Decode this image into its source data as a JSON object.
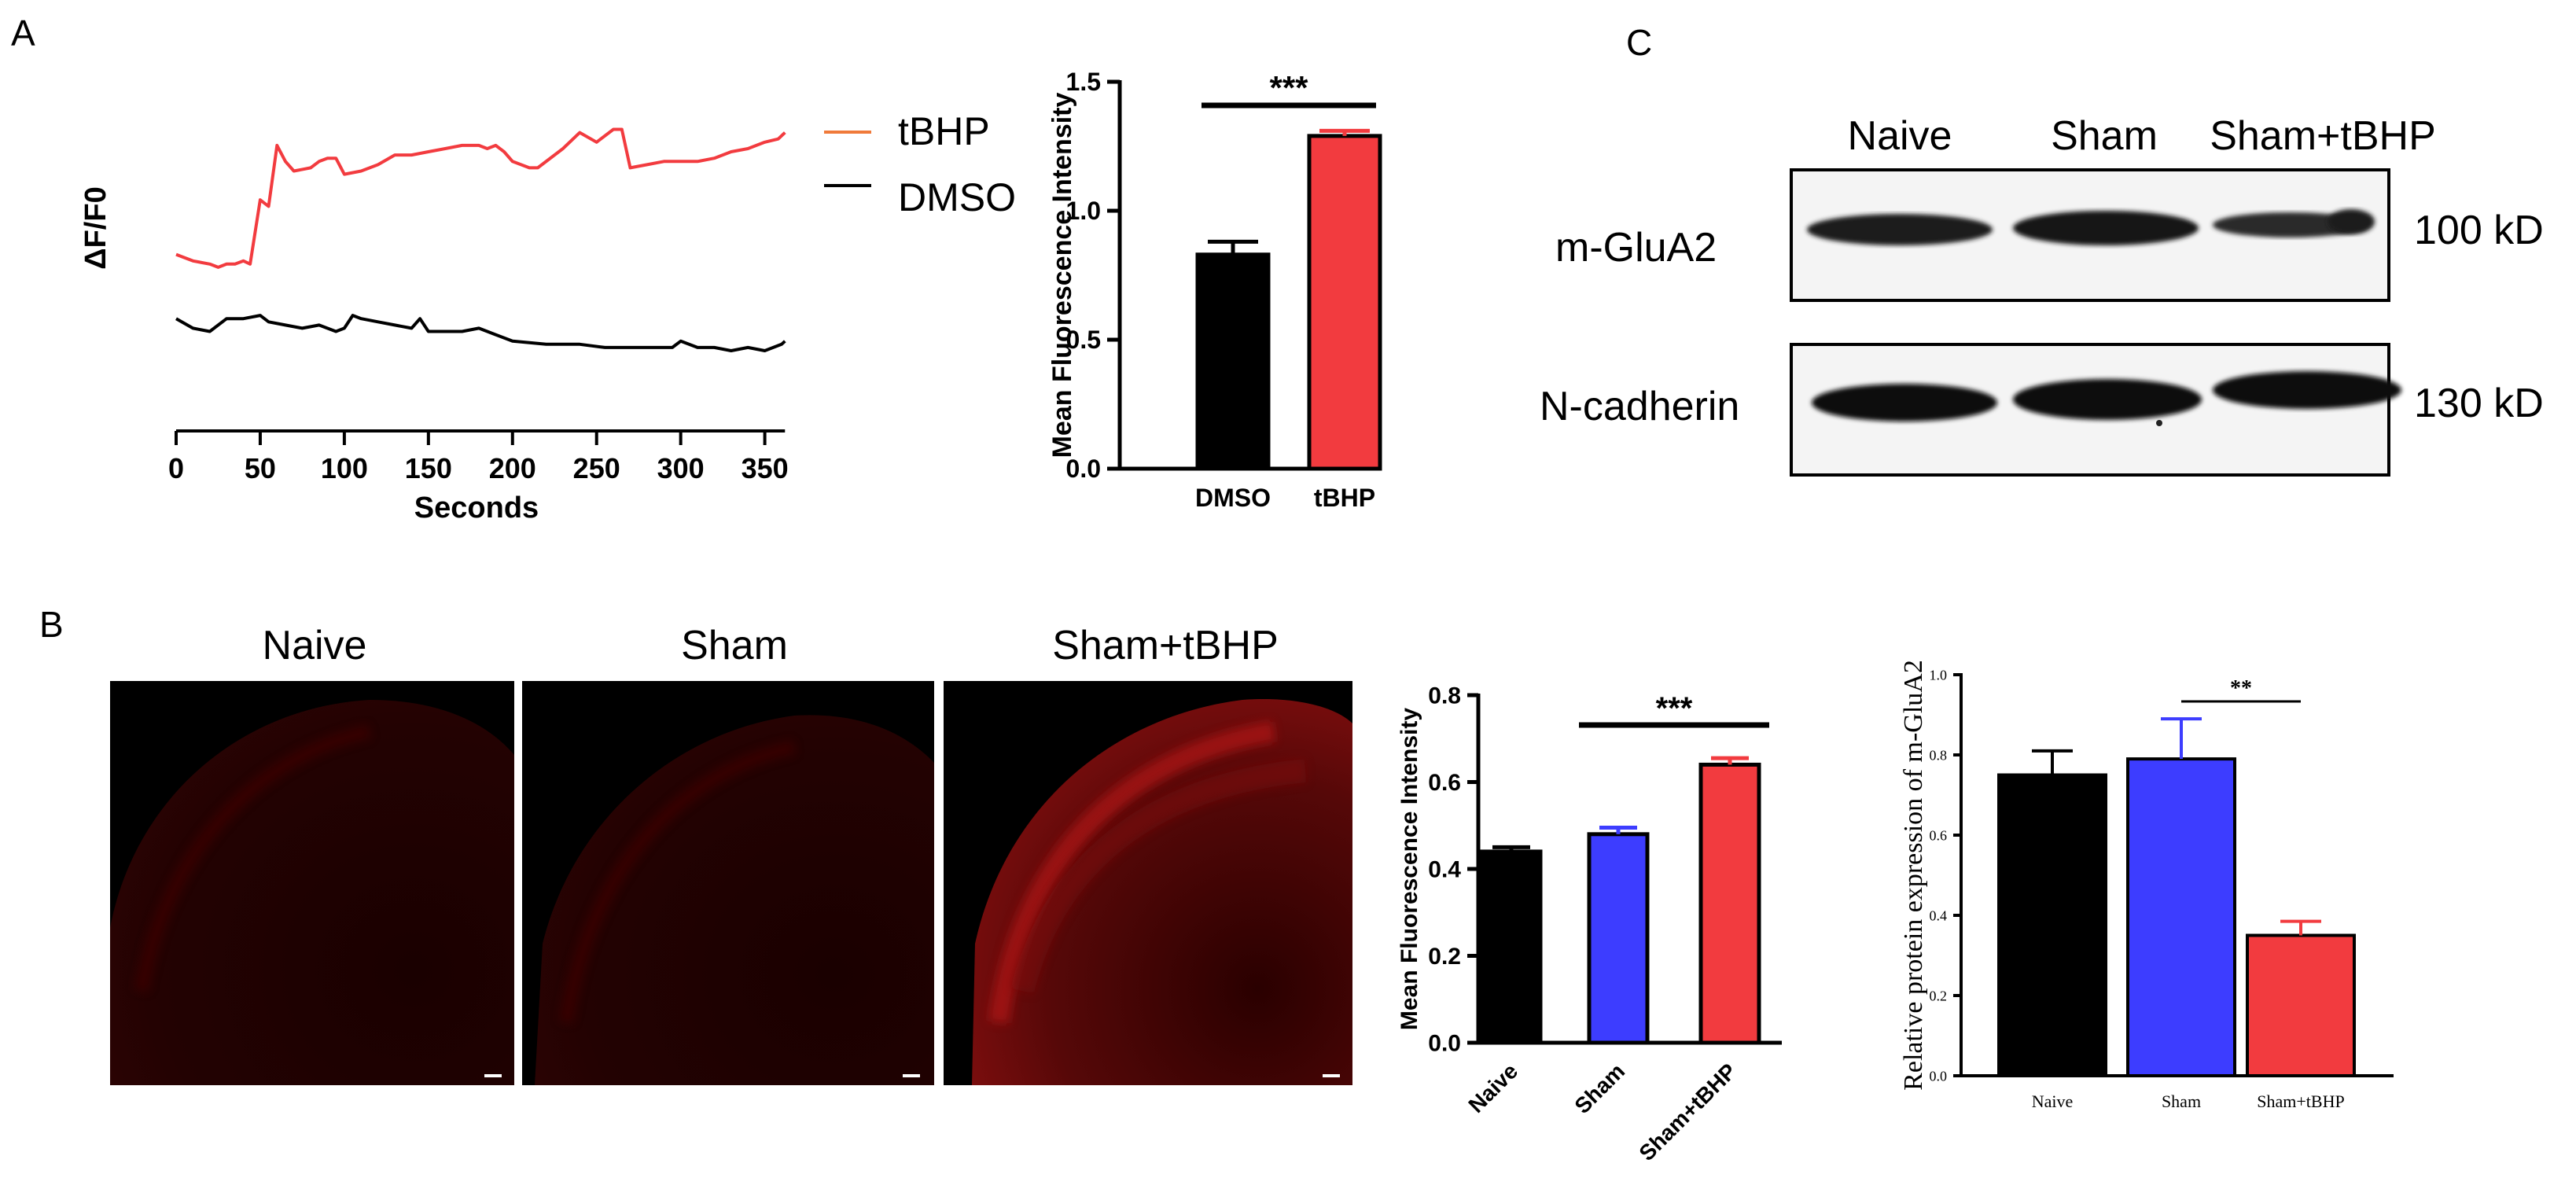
{
  "panels": {
    "a": "A",
    "b": "B",
    "c": "C"
  },
  "colors": {
    "tbhp": "#f23b3f",
    "tbhp_legend": "#f07a3a",
    "dmso": "#000000",
    "naive": "#000000",
    "sham": "#3d3dff",
    "sham_tbhp": "#f23b3f"
  },
  "micrographs": {
    "labels": [
      "Naive",
      "Sham",
      "Sham+tBHP"
    ],
    "intensity": [
      "low",
      "low",
      "high"
    ]
  },
  "western_blot": {
    "lanes": [
      "Naive",
      "Sham",
      "Sham+tBHP"
    ],
    "rows": [
      {
        "protein": "m-GluA2",
        "size": "100 kD"
      },
      {
        "protein": "N-cadherin",
        "size": "130 kD"
      }
    ]
  },
  "chart_data": [
    {
      "type": "line",
      "ylabel": "ΔF/F0",
      "xlabel": "Seconds",
      "xlim": [
        0,
        360
      ],
      "xticks": [
        "0",
        "50",
        "100",
        "150",
        "200",
        "250",
        "300",
        "350"
      ],
      "yaxis_visible": false,
      "legend_position": "top-right",
      "series": [
        {
          "name": "tBHP",
          "points": [
            [
              0,
              0.55
            ],
            [
              10,
              0.53
            ],
            [
              20,
              0.52
            ],
            [
              25,
              0.51
            ],
            [
              30,
              0.52
            ],
            [
              35,
              0.52
            ],
            [
              40,
              0.53
            ],
            [
              44,
              0.52
            ],
            [
              50,
              0.72
            ],
            [
              55,
              0.7
            ],
            [
              60,
              0.89
            ],
            [
              65,
              0.84
            ],
            [
              70,
              0.81
            ],
            [
              80,
              0.82
            ],
            [
              85,
              0.84
            ],
            [
              90,
              0.85
            ],
            [
              95,
              0.85
            ],
            [
              100,
              0.8
            ],
            [
              110,
              0.81
            ],
            [
              120,
              0.83
            ],
            [
              130,
              0.86
            ],
            [
              140,
              0.86
            ],
            [
              150,
              0.87
            ],
            [
              160,
              0.88
            ],
            [
              170,
              0.89
            ],
            [
              180,
              0.89
            ],
            [
              185,
              0.88
            ],
            [
              190,
              0.89
            ],
            [
              195,
              0.87
            ],
            [
              200,
              0.84
            ],
            [
              210,
              0.82
            ],
            [
              215,
              0.82
            ],
            [
              230,
              0.88
            ],
            [
              240,
              0.93
            ],
            [
              250,
              0.9
            ],
            [
              260,
              0.94
            ],
            [
              265,
              0.94
            ],
            [
              270,
              0.82
            ],
            [
              280,
              0.83
            ],
            [
              290,
              0.84
            ],
            [
              300,
              0.84
            ],
            [
              310,
              0.84
            ],
            [
              320,
              0.85
            ],
            [
              330,
              0.87
            ],
            [
              340,
              0.88
            ],
            [
              350,
              0.9
            ],
            [
              358,
              0.91
            ],
            [
              362,
              0.93
            ]
          ]
        },
        {
          "name": "DMSO",
          "points": [
            [
              0,
              0.35
            ],
            [
              10,
              0.32
            ],
            [
              20,
              0.31
            ],
            [
              30,
              0.35
            ],
            [
              40,
              0.35
            ],
            [
              50,
              0.36
            ],
            [
              55,
              0.34
            ],
            [
              65,
              0.33
            ],
            [
              75,
              0.32
            ],
            [
              85,
              0.33
            ],
            [
              95,
              0.31
            ],
            [
              100,
              0.32
            ],
            [
              105,
              0.36
            ],
            [
              110,
              0.35
            ],
            [
              120,
              0.34
            ],
            [
              130,
              0.33
            ],
            [
              140,
              0.32
            ],
            [
              145,
              0.35
            ],
            [
              150,
              0.31
            ],
            [
              160,
              0.31
            ],
            [
              170,
              0.31
            ],
            [
              180,
              0.32
            ],
            [
              190,
              0.3
            ],
            [
              200,
              0.28
            ],
            [
              220,
              0.27
            ],
            [
              240,
              0.27
            ],
            [
              255,
              0.26
            ],
            [
              270,
              0.26
            ],
            [
              280,
              0.26
            ],
            [
              295,
              0.26
            ],
            [
              300,
              0.28
            ],
            [
              310,
              0.26
            ],
            [
              320,
              0.26
            ],
            [
              330,
              0.25
            ],
            [
              340,
              0.26
            ],
            [
              350,
              0.25
            ],
            [
              360,
              0.27
            ],
            [
              362,
              0.28
            ]
          ]
        }
      ]
    },
    {
      "type": "bar",
      "categories": [
        "DMSO",
        "tBHP"
      ],
      "values": [
        0.83,
        1.29
      ],
      "errors": [
        0.05,
        0.02
      ],
      "ylabel": "Mean Fluorescence Intensity",
      "ylim": [
        0,
        1.5
      ],
      "yticks": [
        "0.0",
        "0.5",
        "1.0",
        "1.5"
      ],
      "significance": "***"
    },
    {
      "type": "bar",
      "categories": [
        "Naive",
        "Sham",
        "Sham+tBHP"
      ],
      "values": [
        0.44,
        0.48,
        0.64
      ],
      "errors": [
        0.01,
        0.015,
        0.015
      ],
      "ylabel": "Mean Fluorescence Intensity",
      "ylim": [
        0,
        0.8
      ],
      "yticks": [
        "0.0",
        "0.2",
        "0.4",
        "0.6",
        "0.8"
      ],
      "significance": "***"
    },
    {
      "type": "bar",
      "categories": [
        "Naive",
        "Sham",
        "Sham+tBHP"
      ],
      "values": [
        0.75,
        0.79,
        0.35
      ],
      "errors": [
        0.06,
        0.1,
        0.035
      ],
      "ylabel": "Relative protein expression of m-GluA2",
      "ylim": [
        0,
        1.0
      ],
      "yticks": [
        "0.0",
        "0.2",
        "0.4",
        "0.6",
        "0.8",
        "1.0"
      ],
      "significance": "**"
    }
  ]
}
